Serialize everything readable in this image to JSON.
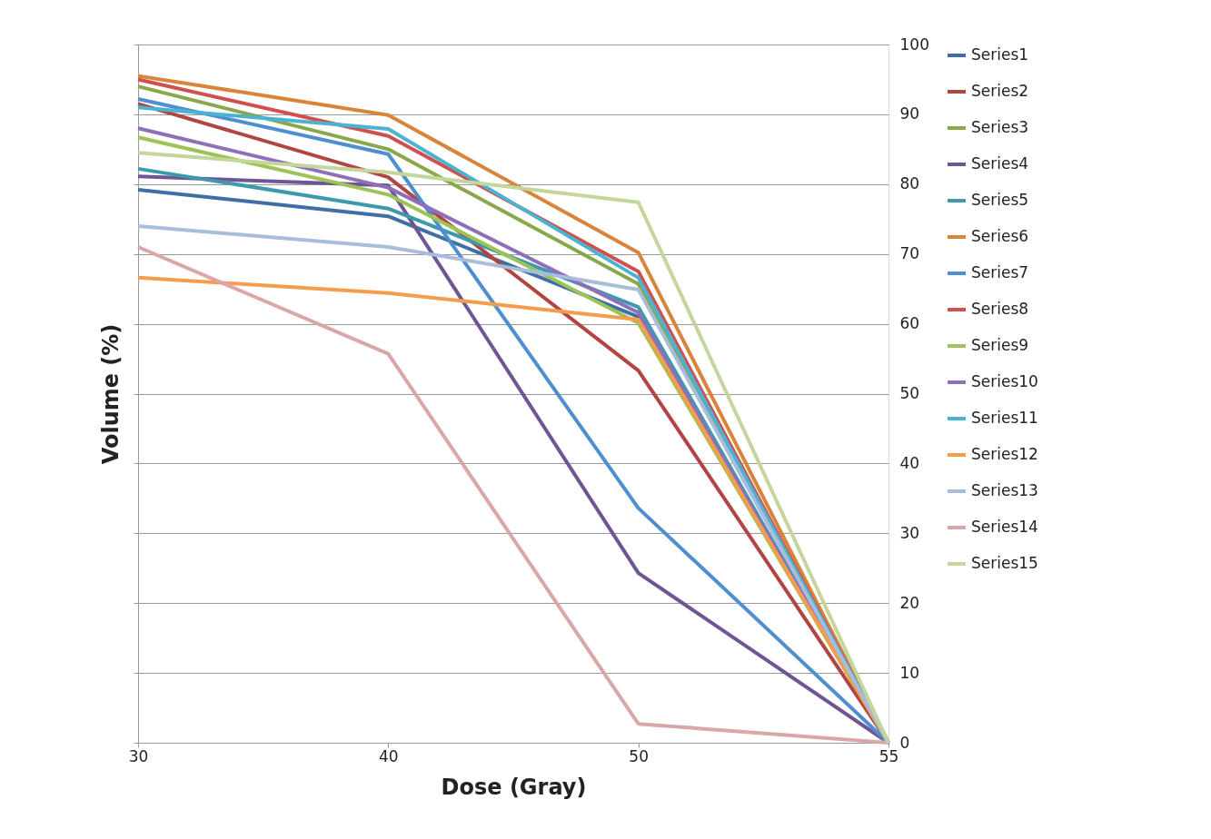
{
  "chart_data": {
    "type": "line",
    "xlabel": "Dose (Gray)",
    "ylabel": "Volume (%)",
    "categories": [
      "30",
      "40",
      "50",
      "55"
    ],
    "ylim": [
      0,
      100
    ],
    "yticks": [
      0,
      10,
      20,
      30,
      40,
      50,
      60,
      70,
      80,
      90,
      100
    ],
    "grid": "y",
    "legend": "right",
    "marker": "none",
    "line_style": "solid",
    "series": [
      {
        "name": "Series1",
        "color": "#3f6fa5",
        "values": [
          79.2,
          75.4,
          61.0,
          0
        ]
      },
      {
        "name": "Series2",
        "color": "#b04541",
        "values": [
          91.5,
          81.0,
          53.3,
          0
        ]
      },
      {
        "name": "Series3",
        "color": "#88a84a",
        "values": [
          94.0,
          85.0,
          65.7,
          0
        ]
      },
      {
        "name": "Series4",
        "color": "#6f5596",
        "values": [
          81.1,
          79.8,
          24.3,
          0
        ]
      },
      {
        "name": "Series5",
        "color": "#3f99ae",
        "values": [
          82.2,
          76.5,
          62.4,
          0
        ]
      },
      {
        "name": "Series6",
        "color": "#d8843a",
        "values": [
          95.5,
          89.9,
          70.2,
          0
        ]
      },
      {
        "name": "Series7",
        "color": "#4f8fd0",
        "values": [
          92.2,
          84.3,
          33.6,
          0
        ]
      },
      {
        "name": "Series8",
        "color": "#d0504d",
        "values": [
          95.0,
          86.9,
          67.5,
          0
        ]
      },
      {
        "name": "Series9",
        "color": "#9bc356",
        "values": [
          86.7,
          78.5,
          60.1,
          0
        ]
      },
      {
        "name": "Series10",
        "color": "#8e6fb9",
        "values": [
          88.0,
          79.5,
          61.6,
          0
        ]
      },
      {
        "name": "Series11",
        "color": "#4bb3d1",
        "values": [
          91.0,
          87.9,
          66.6,
          0
        ]
      },
      {
        "name": "Series12",
        "color": "#f59d4c",
        "values": [
          66.6,
          64.4,
          60.6,
          0
        ]
      },
      {
        "name": "Series13",
        "color": "#a8bcdc",
        "values": [
          74.0,
          71.0,
          64.9,
          0
        ]
      },
      {
        "name": "Series14",
        "color": "#d9a7a7",
        "values": [
          71.0,
          55.7,
          2.7,
          0
        ]
      },
      {
        "name": "Series15",
        "color": "#c3d69b",
        "values": [
          84.5,
          81.7,
          77.4,
          0
        ]
      }
    ]
  }
}
